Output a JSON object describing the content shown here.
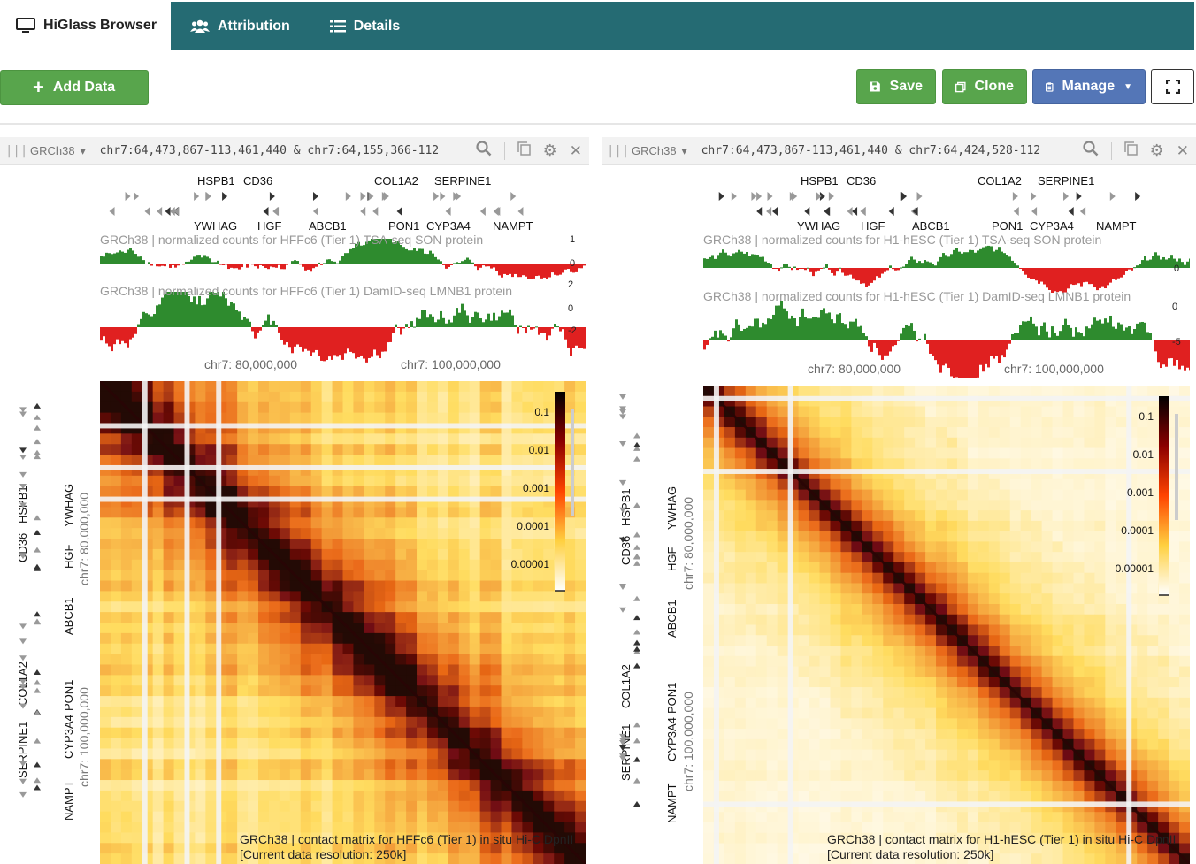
{
  "nav": {
    "brand": "HiGlass Browser",
    "attribution": "Attribution",
    "details": "Details"
  },
  "toolbar": {
    "add_data": "Add Data",
    "save": "Save",
    "clone": "Clone",
    "manage": "Manage"
  },
  "colors": {
    "nav_bg": "#256b73",
    "green_button": "#58a54c",
    "blue_button": "#5476b7",
    "track_positive": "#2e8b2e",
    "track_negative": "#e02020"
  },
  "views": [
    {
      "assembly": "GRCh38",
      "locus": "chr7:64,473,867-113,461,440 & chr7:64,155,366-112",
      "tsa_title": "GRCh38 | normalized counts for HFFc6 (Tier 1) TSA-seq SON protein",
      "damid_title": "GRCh38 | normalized counts for HFFc6 (Tier 1) DamID-seq LMNB1 protein",
      "tsa_scale": [
        "1",
        "0"
      ],
      "damid_scale": [
        "2",
        "0",
        "-2"
      ],
      "genes_top": [
        "HSPB1",
        "CD36",
        "COL1A2",
        "SERPINE1"
      ],
      "genes_bottom": [
        "YWHAG",
        "HGF",
        "ABCB1",
        "PON1",
        "CYP3A4",
        "NAMPT"
      ],
      "x_axis": [
        "chr7: 80,000,000",
        "chr7: 100,000,000"
      ],
      "y_axis": [
        "chr7: 80,000,000",
        "chr7: 100,000,000"
      ],
      "colorbar": [
        "0.1",
        "0.01",
        "0.001",
        "0.0001",
        "0.00001"
      ],
      "caption_line1": "GRCh38 | contact matrix for HFFc6 (Tier 1) in situ Hi-C DpnII",
      "caption_line2": "[Current data resolution: 250k]"
    },
    {
      "assembly": "GRCh38",
      "locus": "chr7:64,473,867-113,461,440 & chr7:64,424,528-112",
      "tsa_title": "GRCh38 | normalized counts for H1-hESC (Tier 1) TSA-seq SON protein",
      "damid_title": "GRCh38 | normalized counts for H1-hESC (Tier 1) DamID-seq LMNB1 protein",
      "tsa_scale": [
        "0"
      ],
      "damid_scale": [
        "0",
        "-5"
      ],
      "genes_top": [
        "HSPB1",
        "CD36",
        "COL1A2",
        "SERPINE1"
      ],
      "genes_bottom": [
        "YWHAG",
        "HGF",
        "ABCB1",
        "PON1",
        "CYP3A4",
        "NAMPT"
      ],
      "x_axis": [
        "chr7: 80,000,000",
        "chr7: 100,000,000"
      ],
      "y_axis": [
        "chr7: 80,000,000",
        "chr7: 100,000,000"
      ],
      "colorbar": [
        "0.1",
        "0.01",
        "0.001",
        "0.0001",
        "0.00001"
      ],
      "caption_line1": "GRCh38 | contact matrix for H1-hESC (Tier 1) in situ Hi-C DpnII",
      "caption_line2": "[Current data resolution: 250k]"
    }
  ]
}
